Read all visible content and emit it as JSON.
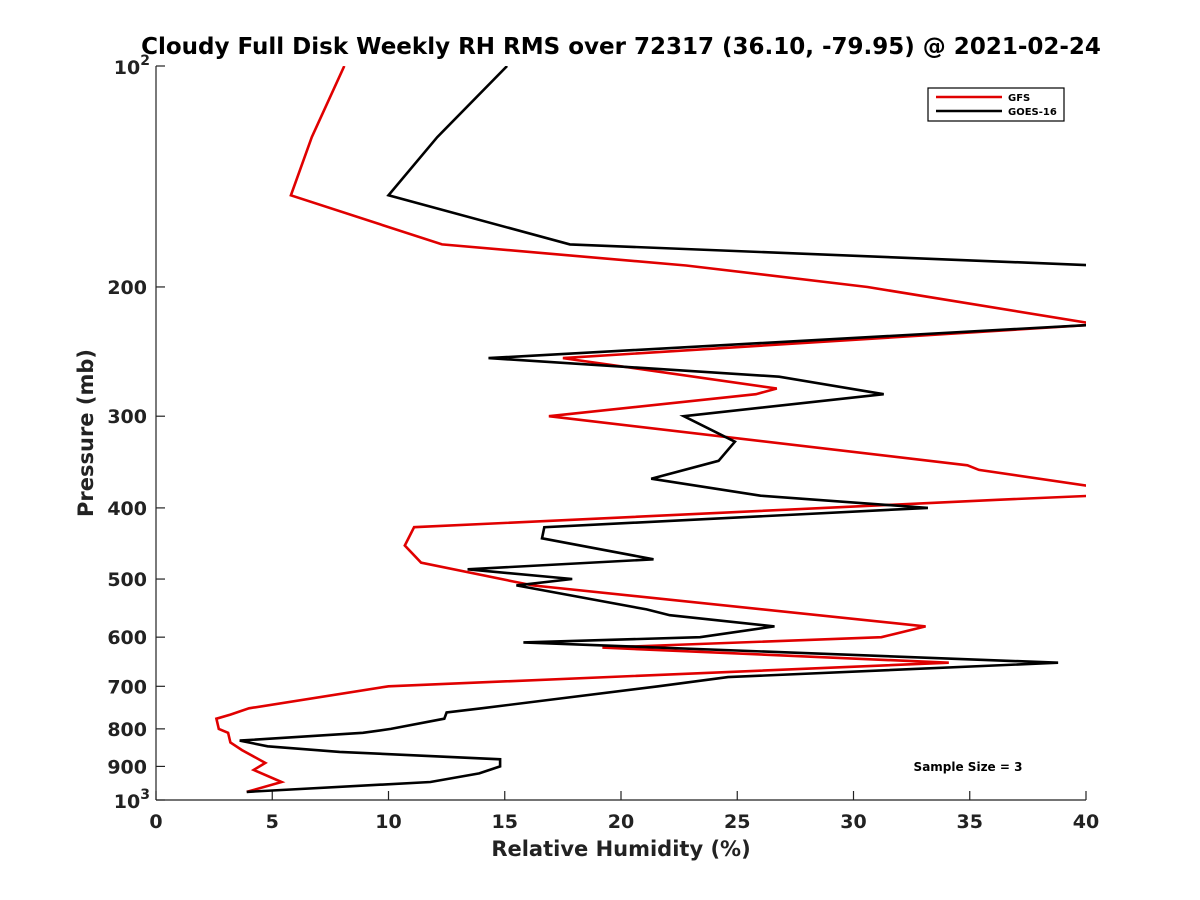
{
  "chart_data": {
    "type": "line",
    "title": "Cloudy Full Disk Weekly RH RMS over 72317 (36.10, -79.95) @ 2021-02-24",
    "xlabel": "Relative Humidity (%)",
    "ylabel": "Pressure (mb)",
    "xlim": [
      0,
      40
    ],
    "ylim": [
      100,
      1000
    ],
    "y_scale": "log",
    "y_reversed": true,
    "x_ticks": [
      0,
      5,
      10,
      15,
      20,
      25,
      30,
      35,
      40
    ],
    "x_tick_labels": [
      "0",
      "5",
      "10",
      "15",
      "20",
      "25",
      "30",
      "35",
      "40"
    ],
    "y_ticks": [
      200,
      300,
      400,
      500,
      600,
      700,
      800,
      900
    ],
    "y_tick_labels": [
      "200",
      "300",
      "400",
      "500",
      "600",
      "700",
      "800",
      "900"
    ],
    "y_end_labels": [
      {
        "value": 100,
        "base": "10",
        "exp": "2"
      },
      {
        "value": 1000,
        "base": "10",
        "exp": "3"
      }
    ],
    "grid": false,
    "legend_position": "top-right",
    "annotation": "Sample Size = 3",
    "series": [
      {
        "name": "GFS",
        "color": "#e00000",
        "points": [
          [
            8.1,
            100
          ],
          [
            6.7,
            125
          ],
          [
            5.8,
            150
          ],
          [
            12.3,
            175
          ],
          [
            22.8,
            187
          ],
          [
            30.6,
            200
          ],
          [
            40.5,
            225
          ],
          [
            17.5,
            250
          ],
          [
            26.7,
            275
          ],
          [
            25.8,
            280
          ],
          [
            16.9,
            300
          ],
          [
            34.9,
            350
          ],
          [
            35.4,
            355
          ],
          [
            40.5,
            375
          ],
          [
            40.3,
            385
          ],
          [
            36.2,
            390
          ],
          [
            11.1,
            425
          ],
          [
            10.7,
            450
          ],
          [
            11.4,
            475
          ],
          [
            16.2,
            510
          ],
          [
            33.1,
            580
          ],
          [
            31.2,
            600
          ],
          [
            19.2,
            620
          ],
          [
            34.1,
            650
          ],
          [
            10.0,
            700
          ],
          [
            4.0,
            750
          ],
          [
            3.2,
            765
          ],
          [
            2.6,
            775
          ],
          [
            2.7,
            800
          ],
          [
            3.1,
            810
          ],
          [
            3.2,
            835
          ],
          [
            3.7,
            855
          ],
          [
            4.7,
            890
          ],
          [
            4.2,
            910
          ],
          [
            5.4,
            945
          ],
          [
            3.9,
            975
          ]
        ]
      },
      {
        "name": "GOES-16",
        "color": "#000000",
        "points": [
          [
            15.1,
            100
          ],
          [
            12.1,
            125
          ],
          [
            10.0,
            150
          ],
          [
            17.8,
            175
          ],
          [
            40.5,
            187
          ],
          [
            40.5,
            225
          ],
          [
            14.3,
            250
          ],
          [
            26.8,
            265
          ],
          [
            31.3,
            280
          ],
          [
            22.7,
            300
          ],
          [
            24.9,
            325
          ],
          [
            24.2,
            345
          ],
          [
            21.3,
            365
          ],
          [
            26.0,
            385
          ],
          [
            33.2,
            400
          ],
          [
            16.7,
            425
          ],
          [
            16.6,
            440
          ],
          [
            21.4,
            470
          ],
          [
            13.4,
            485
          ],
          [
            17.9,
            500
          ],
          [
            15.5,
            510
          ],
          [
            21.1,
            550
          ],
          [
            22.1,
            560
          ],
          [
            26.6,
            580
          ],
          [
            23.4,
            600
          ],
          [
            15.8,
            610
          ],
          [
            38.8,
            650
          ],
          [
            24.6,
            680
          ],
          [
            21.6,
            700
          ],
          [
            14.0,
            750
          ],
          [
            12.5,
            760
          ],
          [
            12.4,
            775
          ],
          [
            10.1,
            800
          ],
          [
            8.9,
            810
          ],
          [
            3.6,
            830
          ],
          [
            4.8,
            845
          ],
          [
            7.9,
            860
          ],
          [
            14.8,
            880
          ],
          [
            14.8,
            900
          ],
          [
            13.9,
            920
          ],
          [
            11.8,
            945
          ],
          [
            3.9,
            975
          ]
        ]
      }
    ]
  }
}
